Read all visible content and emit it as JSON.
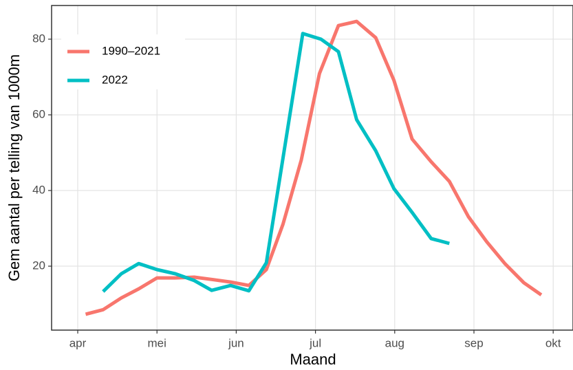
{
  "chart_data": {
    "type": "line",
    "x_label": "Maand",
    "y_label": "Gem aantal per telling van 1000m",
    "xlim": [
      3.67,
      10.25
    ],
    "xticks": [
      {
        "value": 4,
        "label": "apr"
      },
      {
        "value": 5,
        "label": "mei"
      },
      {
        "value": 6,
        "label": "jun"
      },
      {
        "value": 7,
        "label": "jul"
      },
      {
        "value": 8,
        "label": "aug"
      },
      {
        "value": 9,
        "label": "sep"
      },
      {
        "value": 10,
        "label": "okt"
      }
    ],
    "ylim": [
      3.1,
      88.9
    ],
    "yticks": [
      20,
      40,
      60,
      80
    ],
    "grid": true,
    "legend": "top-left",
    "series": [
      {
        "name": "1990–2021",
        "color": "#F8766D",
        "x": [
          4.1,
          4.32,
          4.55,
          4.77,
          5.0,
          5.23,
          5.47,
          5.69,
          5.93,
          6.16,
          6.38,
          6.59,
          6.82,
          7.05,
          7.29,
          7.52,
          7.76,
          7.99,
          8.22,
          8.46,
          8.69,
          8.93,
          9.16,
          9.39,
          9.63,
          9.85
        ],
        "values": [
          7.3,
          8.5,
          11.6,
          14.0,
          16.9,
          16.9,
          17.1,
          16.5,
          15.8,
          14.9,
          19.1,
          31.1,
          48.0,
          70.9,
          83.6,
          84.7,
          80.4,
          69.1,
          53.6,
          47.6,
          42.4,
          33.1,
          26.5,
          20.7,
          15.6,
          12.4
        ]
      },
      {
        "name": "2022",
        "color": "#00BFC4",
        "x": [
          4.32,
          4.55,
          4.77,
          5.0,
          5.23,
          5.47,
          5.69,
          5.93,
          6.16,
          6.38,
          6.84,
          7.07,
          7.29,
          7.52,
          7.76,
          7.99,
          8.22,
          8.46,
          8.69
        ],
        "values": [
          13.3,
          18.0,
          20.7,
          19.1,
          18.0,
          16.2,
          13.6,
          14.9,
          13.5,
          20.9,
          81.5,
          80.0,
          76.7,
          58.7,
          50.5,
          40.5,
          34.2,
          27.3,
          26.0
        ]
      }
    ]
  }
}
